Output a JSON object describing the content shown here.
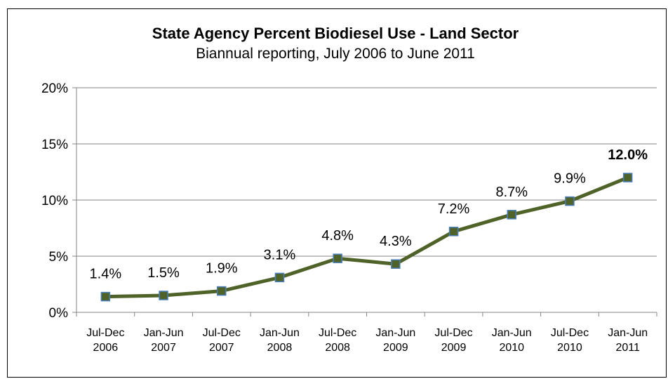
{
  "chart_data": {
    "type": "line",
    "title": "State Agency Percent Biodiesel Use - Land Sector",
    "subtitle": "Biannual reporting, July 2006 to June 2011",
    "xlabel": "",
    "ylabel": "",
    "ylim": [
      0,
      20
    ],
    "yticks": [
      0,
      5,
      10,
      15,
      20
    ],
    "ytick_labels": [
      "0%",
      "5%",
      "10%",
      "15%",
      "20%"
    ],
    "grid": "horizontal",
    "legend": "none",
    "categories": [
      [
        "Jul-Dec",
        "2006"
      ],
      [
        "Jan-Jun",
        "2007"
      ],
      [
        "Jul-Dec",
        "2007"
      ],
      [
        "Jan-Jun",
        "2008"
      ],
      [
        "Jul-Dec",
        "2008"
      ],
      [
        "Jan-Jun",
        "2009"
      ],
      [
        "Jul-Dec",
        "2009"
      ],
      [
        "Jan-Jun",
        "2010"
      ],
      [
        "Jul-Dec",
        "2010"
      ],
      [
        "Jan-Jun",
        "2011"
      ]
    ],
    "series": [
      {
        "values": [
          1.4,
          1.5,
          1.9,
          3.1,
          4.8,
          4.3,
          7.2,
          8.7,
          9.9,
          12.0
        ],
        "labels": [
          "1.4%",
          "1.5%",
          "1.9%",
          "3.1%",
          "4.8%",
          "4.3%",
          "7.2%",
          "8.7%",
          "9.9%",
          "12.0%"
        ],
        "line_color": "#4f6228",
        "marker_fill": "#4f6228",
        "marker_edge": "#4a7ebb"
      }
    ],
    "gridline_color": "#868686",
    "axis_color": "#868686"
  }
}
